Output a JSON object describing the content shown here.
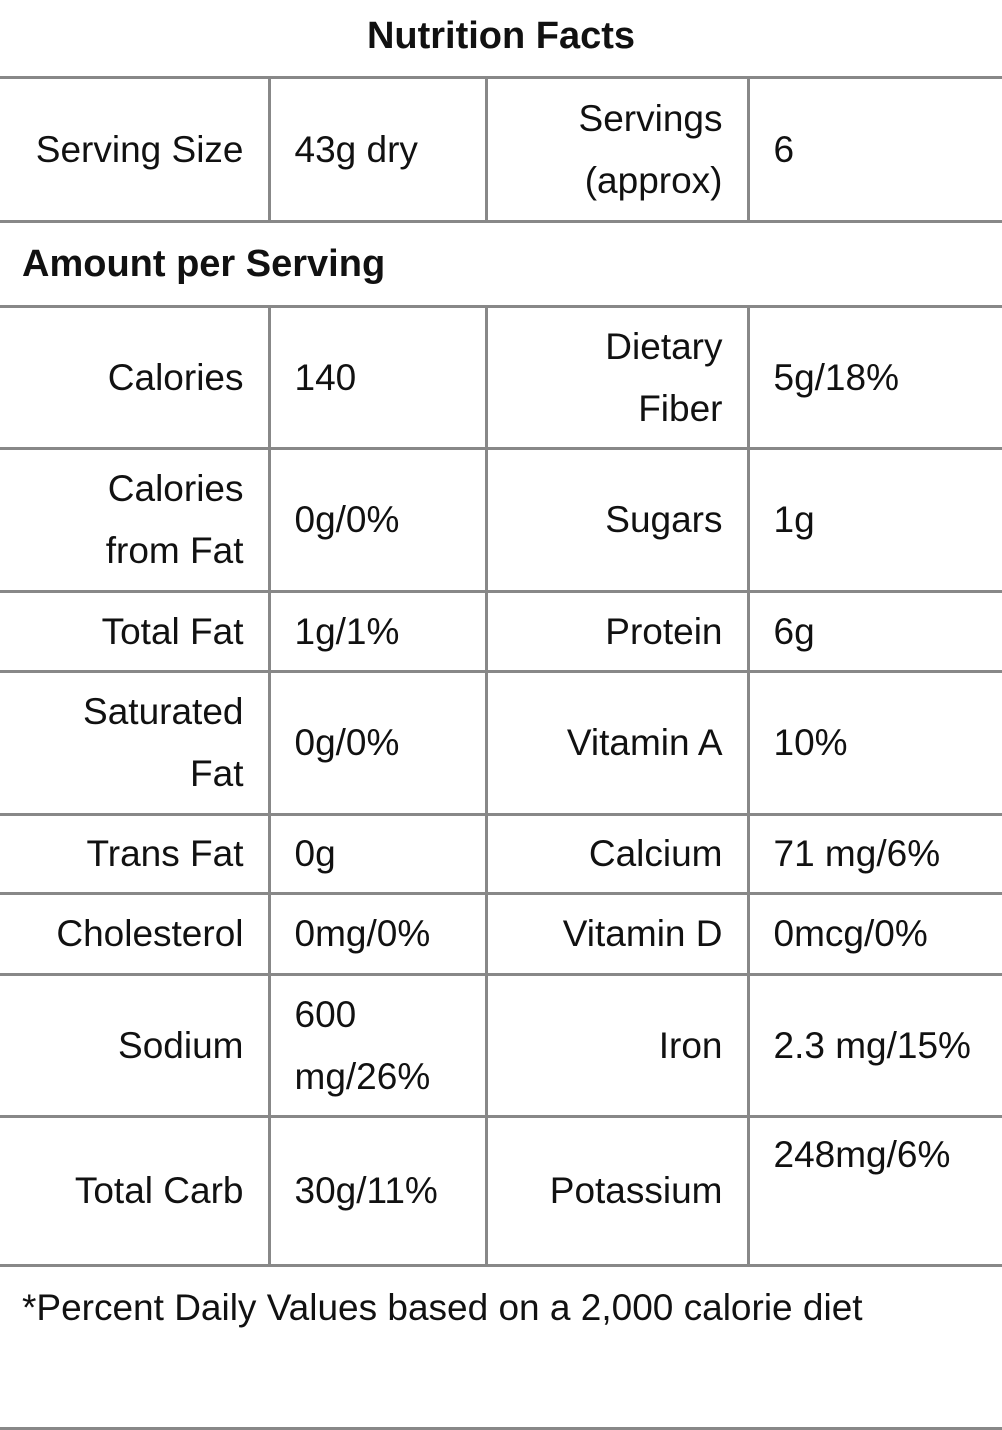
{
  "title": "Nutrition Facts",
  "serving": [
    "Serving Size",
    "43g dry",
    "Servings (approx)",
    "6"
  ],
  "section_header": "Amount per Serving",
  "rows": [
    [
      "Calories",
      "140",
      "Dietary Fiber",
      "5g/18%"
    ],
    [
      "Calories from Fat",
      "0g/0%",
      "Sugars",
      "1g"
    ],
    [
      "Total Fat",
      "1g/1%",
      "Protein",
      "6g"
    ],
    [
      "Saturated Fat",
      "0g/0%",
      "Vitamin A",
      "10%"
    ],
    [
      "Trans Fat",
      "0g",
      "Calcium",
      "71 mg/6%"
    ],
    [
      "Cholesterol",
      "0mg/0%",
      "Vitamin D",
      "0mcg/0%"
    ],
    [
      "Sodium",
      "600 mg/26%",
      "Iron",
      "2.3 mg/15%"
    ],
    [
      "Total Carb",
      "30g/11%",
      "Potassium",
      "248mg/6%"
    ]
  ],
  "footnote": "*Percent Daily Values based on a 2,000 calorie diet"
}
